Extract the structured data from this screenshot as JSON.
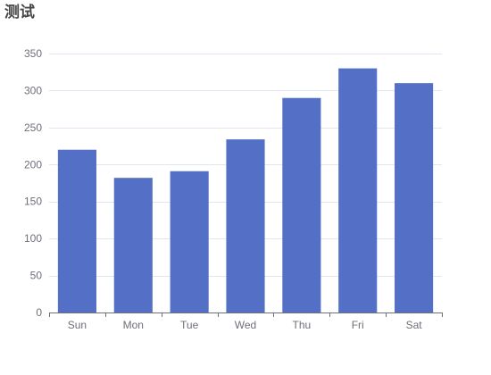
{
  "chart_data": {
    "type": "bar",
    "title": "测试",
    "categories": [
      "Sun",
      "Mon",
      "Tue",
      "Wed",
      "Thu",
      "Fri",
      "Sat"
    ],
    "values": [
      220,
      182,
      191,
      234,
      290,
      330,
      310
    ],
    "ylim": [
      0,
      350
    ],
    "yticks": [
      0,
      50,
      100,
      150,
      200,
      250,
      300,
      350
    ],
    "xlabel": "",
    "ylabel": "",
    "grid": true,
    "legend": "none",
    "colors": {
      "bar": "#5470c6",
      "axis": "#6e7079",
      "grid": "#e0e6f1",
      "title": "#464646"
    }
  }
}
